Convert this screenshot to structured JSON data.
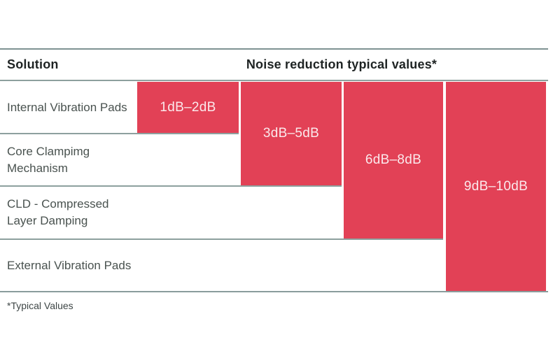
{
  "table": {
    "header": {
      "solution": "Solution",
      "values": "Noise reduction typical values*"
    },
    "rows": [
      {
        "label": "Internal Vibration Pads",
        "value": "1dB–2dB"
      },
      {
        "label": "Core Clampimg Mechanism",
        "value": "3dB–5dB"
      },
      {
        "label": "CLD - Compressed Layer Damping",
        "value": "6dB–8dB"
      },
      {
        "label": "External Vibration Pads",
        "value": "9dB–10dB"
      }
    ],
    "footnote": "*Typical Values"
  },
  "colors": {
    "accent_red": "#e24156",
    "rule_gray": "#8da09e",
    "header_text": "#1e2323",
    "row_label_text": "#49524f",
    "bar_label_text": "#fbe9ec"
  },
  "chart_data": {
    "type": "bar",
    "title": "Noise reduction typical values*",
    "categories": [
      "Internal Vibration Pads",
      "Core Clampimg Mechanism",
      "CLD - Compressed Layer Damping",
      "External Vibration Pads"
    ],
    "range_labels": [
      "1dB–2dB",
      "3dB–5dB",
      "6dB–8dB",
      "9dB–10dB"
    ],
    "ranges_db": [
      [
        1,
        2
      ],
      [
        3,
        5
      ],
      [
        6,
        8
      ],
      [
        9,
        10
      ]
    ],
    "layout": "stepped columns; column i spans table rows 1 through i, left column lists solutions",
    "legend_position": "none",
    "grid": false,
    "note": "*Typical Values"
  }
}
